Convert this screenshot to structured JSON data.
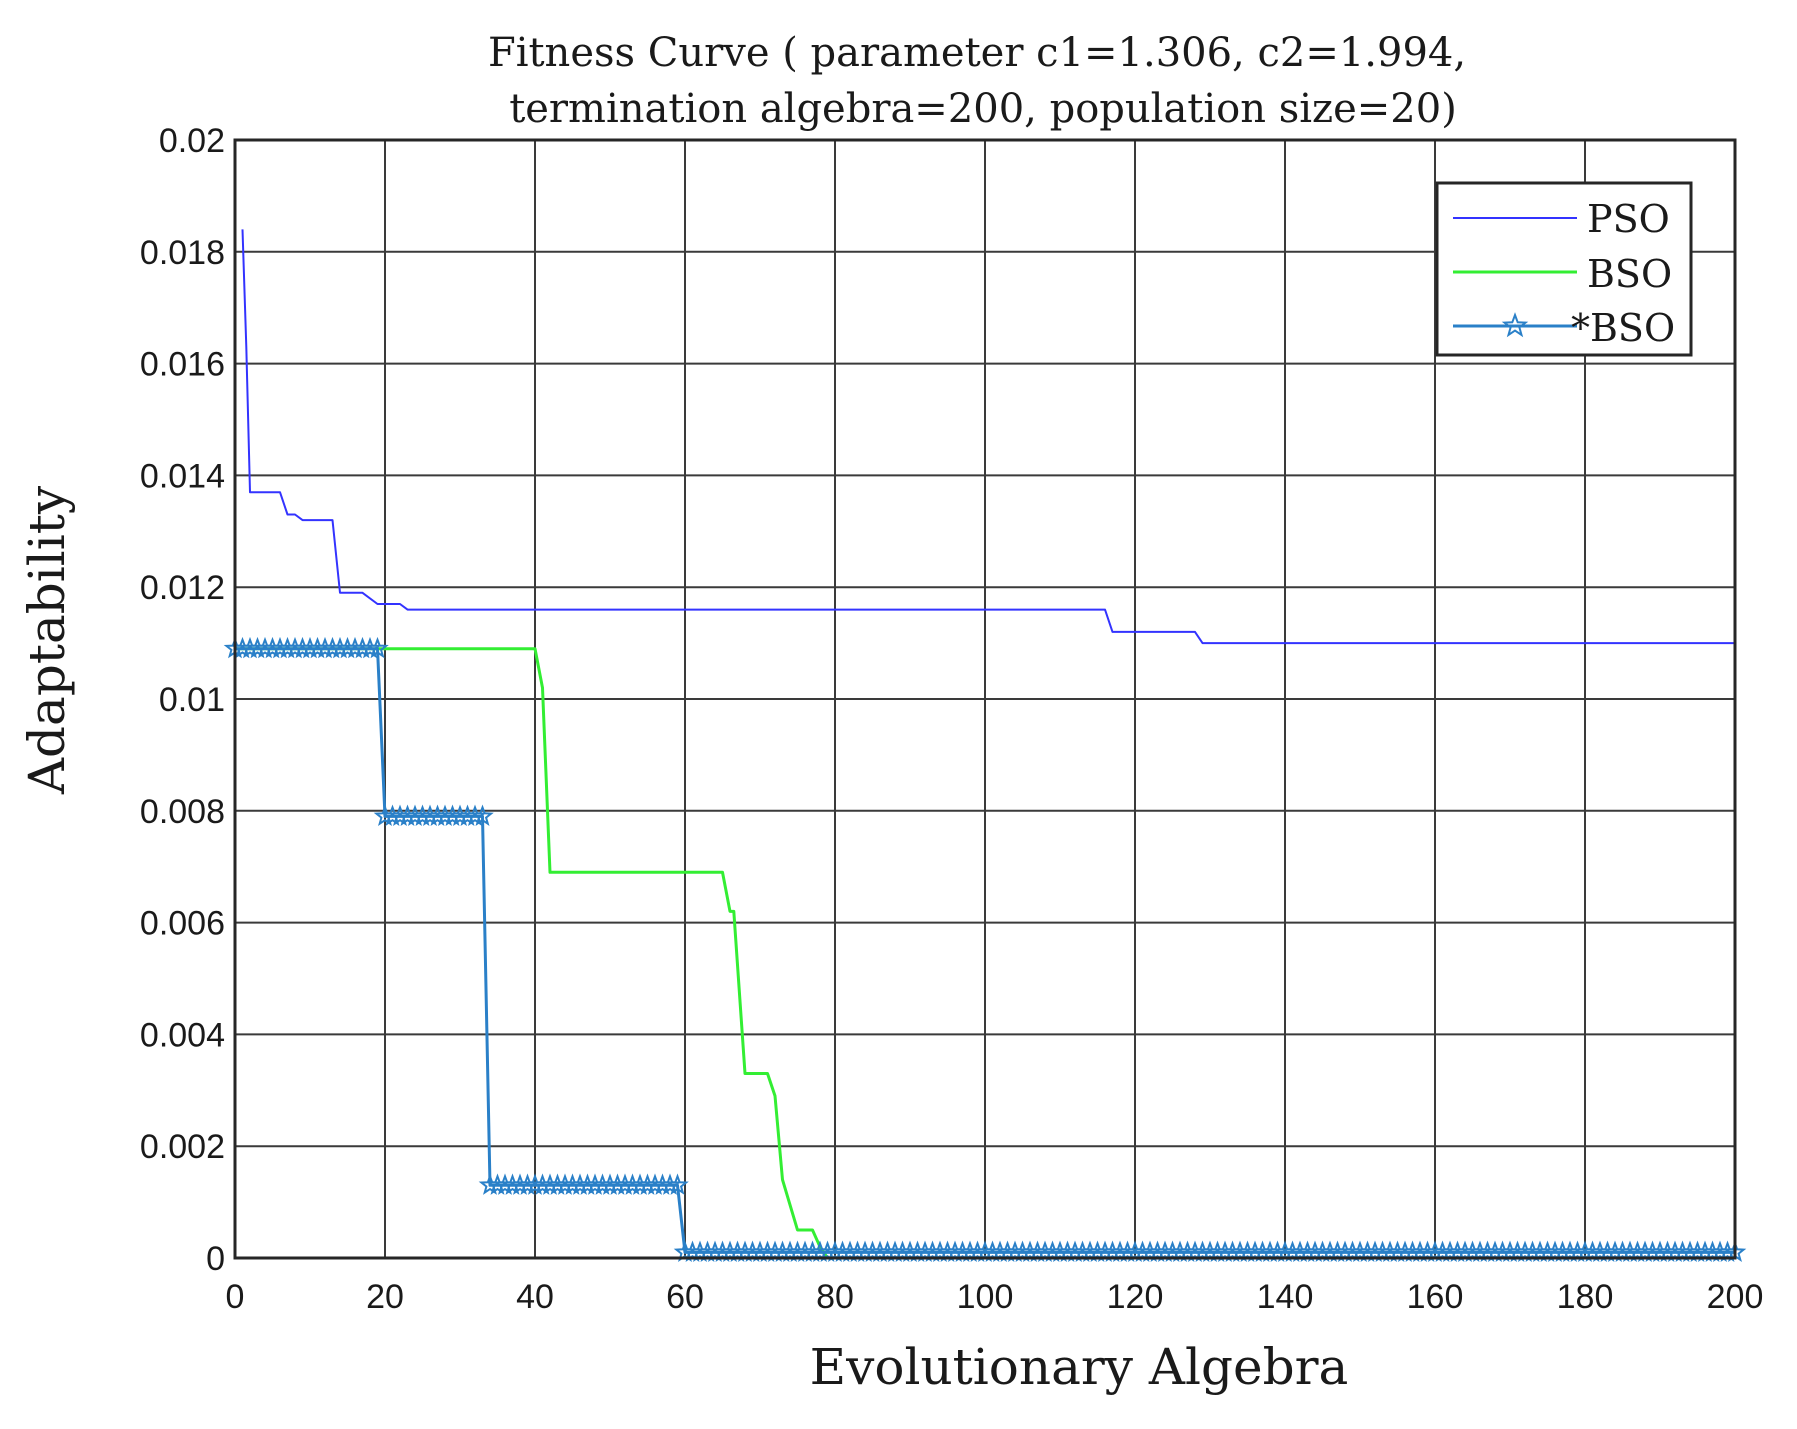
{
  "chart_data": {
    "type": "line",
    "title_line1": "Fitness Curve ( parameter c1=1.306, c2=1.994,",
    "title_line2": "termination algebra=200, population size=20)",
    "xlabel": "Evolutionary Algebra",
    "ylabel": "Adaptability",
    "xlim": [
      0,
      200
    ],
    "ylim": [
      0,
      0.02
    ],
    "xticks": [
      0,
      20,
      40,
      60,
      80,
      100,
      120,
      140,
      160,
      180,
      200
    ],
    "xtick_labels": [
      "0",
      "20",
      "40",
      "60",
      "80",
      "100",
      "120",
      "140",
      "160",
      "180",
      "200"
    ],
    "yticks": [
      0,
      0.002,
      0.004,
      0.006,
      0.008,
      0.01,
      0.012,
      0.014,
      0.016,
      0.018,
      0.02
    ],
    "ytick_labels": [
      "0",
      "0.002",
      "0.004",
      "0.006",
      "0.008",
      "0.01",
      "0.012",
      "0.014",
      "0.016",
      "0.018",
      "0.02"
    ],
    "grid": true,
    "legend_position": "top-right",
    "series": [
      {
        "name": "PSO",
        "color": "#3333ff",
        "marker": "none",
        "points": [
          [
            1,
            0.0184
          ],
          [
            1.5,
            0.0163
          ],
          [
            2,
            0.0137
          ],
          [
            6,
            0.0137
          ],
          [
            7,
            0.0133
          ],
          [
            8,
            0.0133
          ],
          [
            9,
            0.0132
          ],
          [
            13,
            0.0132
          ],
          [
            14,
            0.0119
          ],
          [
            16,
            0.0119
          ],
          [
            17,
            0.0119
          ],
          [
            19,
            0.0117
          ],
          [
            22,
            0.0117
          ],
          [
            23,
            0.0116
          ],
          [
            116,
            0.0116
          ],
          [
            117,
            0.0112
          ],
          [
            128,
            0.0112
          ],
          [
            129,
            0.011
          ],
          [
            200,
            0.011
          ]
        ]
      },
      {
        "name": "BSO",
        "color": "#33ee33",
        "marker": "none",
        "points": [
          [
            0,
            0.0109
          ],
          [
            40,
            0.0109
          ],
          [
            41,
            0.0102
          ],
          [
            42,
            0.0069
          ],
          [
            65,
            0.0069
          ],
          [
            66,
            0.0062
          ],
          [
            66.5,
            0.0062
          ],
          [
            68,
            0.0033
          ],
          [
            71,
            0.0033
          ],
          [
            72,
            0.0029
          ],
          [
            73,
            0.0014
          ],
          [
            75,
            0.0005
          ],
          [
            77,
            0.0005
          ],
          [
            78,
            0.0002
          ],
          [
            79,
            0
          ],
          [
            200,
            0
          ]
        ]
      },
      {
        "name": "*BSO",
        "color": "#2a80c8",
        "marker": "star",
        "points": [
          [
            0,
            0.0109
          ],
          [
            1,
            0.0109
          ],
          [
            2,
            0.0109
          ],
          [
            3,
            0.0109
          ],
          [
            4,
            0.0109
          ],
          [
            5,
            0.0109
          ],
          [
            6,
            0.0109
          ],
          [
            7,
            0.0109
          ],
          [
            8,
            0.0109
          ],
          [
            9,
            0.0109
          ],
          [
            10,
            0.0109
          ],
          [
            11,
            0.0109
          ],
          [
            12,
            0.0109
          ],
          [
            13,
            0.0109
          ],
          [
            14,
            0.0109
          ],
          [
            15,
            0.0109
          ],
          [
            16,
            0.0109
          ],
          [
            17,
            0.0109
          ],
          [
            18,
            0.0109
          ],
          [
            19,
            0.0109
          ],
          [
            20,
            0.0079
          ],
          [
            21,
            0.0079
          ],
          [
            22,
            0.0079
          ],
          [
            23,
            0.0079
          ],
          [
            24,
            0.0079
          ],
          [
            25,
            0.0079
          ],
          [
            26,
            0.0079
          ],
          [
            27,
            0.0079
          ],
          [
            28,
            0.0079
          ],
          [
            29,
            0.0079
          ],
          [
            30,
            0.0079
          ],
          [
            31,
            0.0079
          ],
          [
            32,
            0.0079
          ],
          [
            33,
            0.0079
          ],
          [
            34,
            0.0013
          ],
          [
            35,
            0.0013
          ],
          [
            36,
            0.0013
          ],
          [
            37,
            0.0013
          ],
          [
            38,
            0.0013
          ],
          [
            39,
            0.0013
          ],
          [
            40,
            0.0013
          ],
          [
            41,
            0.0013
          ],
          [
            42,
            0.0013
          ],
          [
            43,
            0.0013
          ],
          [
            44,
            0.0013
          ],
          [
            45,
            0.0013
          ],
          [
            46,
            0.0013
          ],
          [
            47,
            0.0013
          ],
          [
            48,
            0.0013
          ],
          [
            49,
            0.0013
          ],
          [
            50,
            0.0013
          ],
          [
            51,
            0.0013
          ],
          [
            52,
            0.0013
          ],
          [
            53,
            0.0013
          ],
          [
            54,
            0.0013
          ],
          [
            55,
            0.0013
          ],
          [
            56,
            0.0013
          ],
          [
            57,
            0.0013
          ],
          [
            58,
            0.0013
          ],
          [
            59,
            0.0013
          ],
          [
            60,
            0.0001
          ],
          [
            200,
            0.0001
          ]
        ]
      }
    ]
  }
}
